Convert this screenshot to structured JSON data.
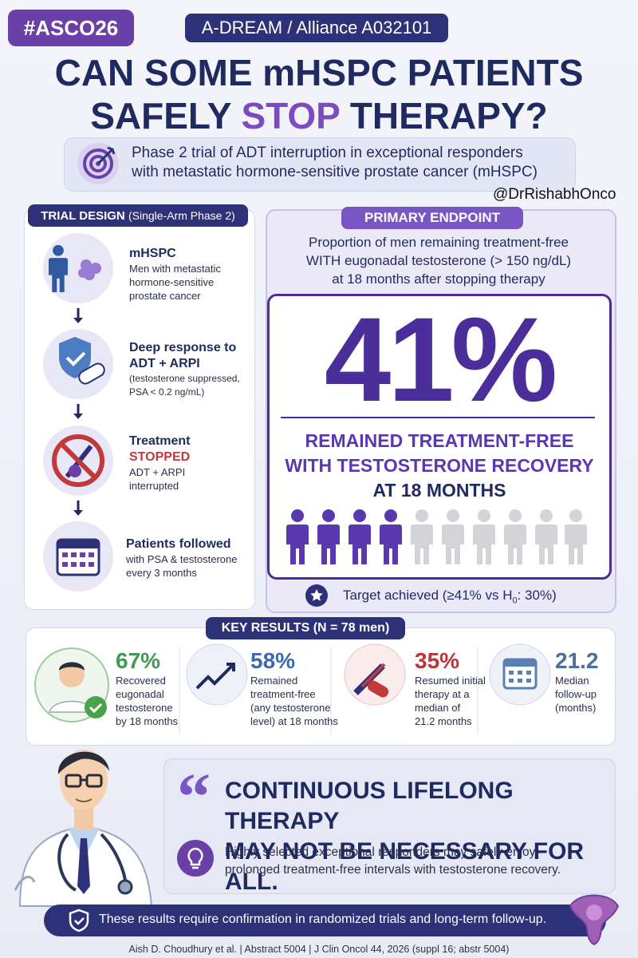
{
  "header": {
    "tag": "#ASCO26",
    "trial": "A-DREAM / Alliance A032101",
    "title_line1": "CAN SOME mHSPC PATIENTS",
    "title_line2": [
      "SAFELY ",
      "STOP",
      " THERAPY?"
    ],
    "subtitle": [
      "Phase 2 trial of ADT interruption in exceptional responders",
      "with metastatic hormone-sensitive prostate cancer (mHSPC)"
    ],
    "handle": "@DrRishabhOnco"
  },
  "trial_design": {
    "heading": "TRIAL DESIGN",
    "heading_note": "(Single-Arm Phase 2)",
    "steps": [
      {
        "title": "mHSPC",
        "lines": [
          "Men with metastatic",
          "hormone-sensitive",
          "prostate cancer"
        ]
      },
      {
        "title": "Deep response to",
        "title2": "ADT + ARPI",
        "lines": [
          "(testosterone suppressed,",
          "PSA < 0.2 ng/mL)"
        ]
      },
      {
        "title": "Treatment",
        "title2": "STOPPED",
        "lines": [
          "ADT + ARPI",
          "interrupted"
        ]
      },
      {
        "title": "Patients followed",
        "lines": [
          "with PSA & testosterone",
          "every 3 months"
        ]
      }
    ]
  },
  "primary_endpoint": {
    "heading": "PRIMARY ENDPOINT",
    "description": [
      "Proportion of men remaining treatment-free",
      "WITH eugonadal testosterone (> 150 ng/dL)",
      "at 18 months after stopping therapy"
    ],
    "result": "41%",
    "result_lines": [
      "REMAINED TREATMENT-FREE",
      "WITH TESTOSTERONE RECOVERY",
      "AT 18 MONTHS"
    ],
    "target": [
      "Target achieved (≥41% vs H",
      "0",
      ": 30%)"
    ]
  },
  "key_results": {
    "heading": "KEY RESULTS (N = 78 men)",
    "items": [
      {
        "value": "67%",
        "lines": [
          "Recovered",
          "eugonadal",
          "testosterone",
          "by 18 months"
        ]
      },
      {
        "value": "58%",
        "lines": [
          "Remained",
          "treatment-free",
          "(any testosterone",
          "level) at 18 months"
        ]
      },
      {
        "value": "35%",
        "lines": [
          "Resumed initial",
          "therapy at a",
          "median of",
          "21.2 months"
        ]
      },
      {
        "value": "21.2",
        "lines": [
          "Median",
          "follow-up",
          "(months)"
        ]
      }
    ]
  },
  "conclusion": {
    "quote": [
      "CONTINUOUS LIFELONG THERAPY",
      "MAY NOT BE NECESSARY FOR ALL."
    ],
    "body": [
      "Highly selected exceptional responders may safely enjoy",
      "prolonged treatment-free intervals with testosterone recovery."
    ]
  },
  "footer": {
    "banner": "These results require confirmation in randomized trials and long-term follow-up.",
    "citation": "Aish D. Choudhury et al. | Abstract 5004 | J Clin Oncol 44, 2026 (suppl 16; abstr 5004)"
  }
}
